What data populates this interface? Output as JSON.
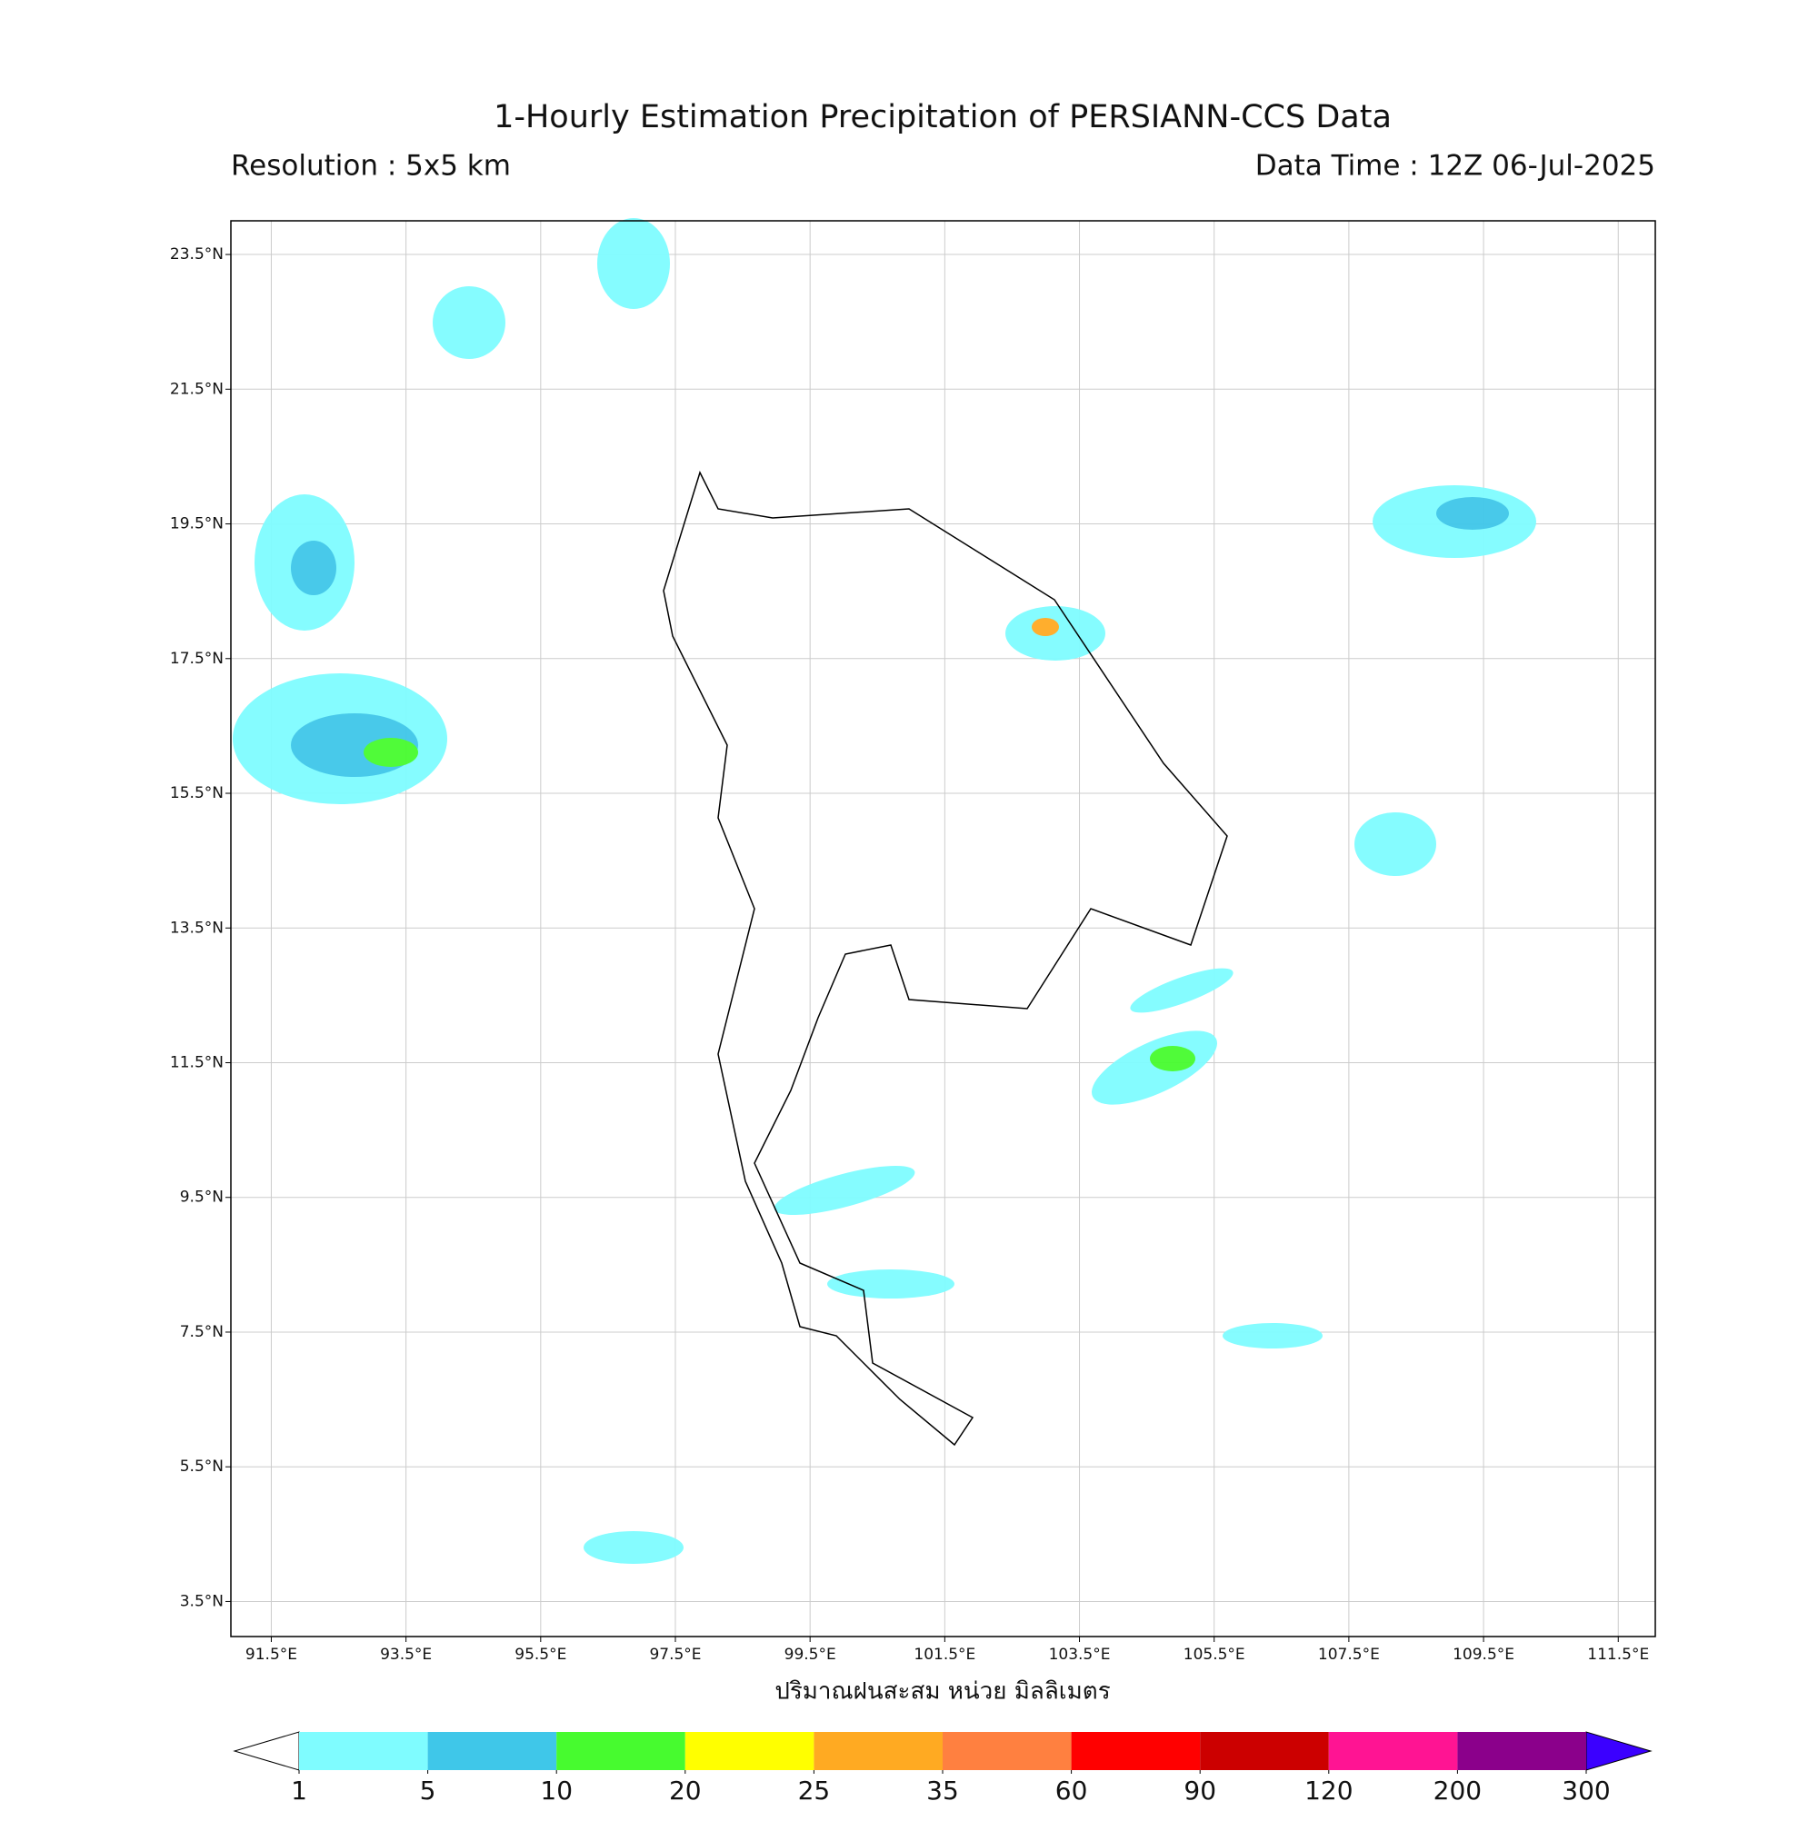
{
  "header": {
    "title": "1-Hourly Estimation Precipitation of PERSIANN-CCS Data",
    "resolution": "Resolution : 5x5 km",
    "data_time": "Data Time : 12Z 06-Jul-2025"
  },
  "map": {
    "lon_range": [
      90.9,
      112.05
    ],
    "lat_range": [
      2.98,
      24.0
    ],
    "lon_ticks": [
      {
        "value": 91.5,
        "label": "91.5°E"
      },
      {
        "value": 93.5,
        "label": "93.5°E"
      },
      {
        "value": 95.5,
        "label": "95.5°E"
      },
      {
        "value": 97.5,
        "label": "97.5°E"
      },
      {
        "value": 99.5,
        "label": "99.5°E"
      },
      {
        "value": 101.5,
        "label": "101.5°E"
      },
      {
        "value": 103.5,
        "label": "103.5°E"
      },
      {
        "value": 105.5,
        "label": "105.5°E"
      },
      {
        "value": 107.5,
        "label": "107.5°E"
      },
      {
        "value": 109.5,
        "label": "109.5°E"
      },
      {
        "value": 111.5,
        "label": "111.5°E"
      }
    ],
    "lat_ticks": [
      {
        "value": 23.5,
        "label": "23.5°N"
      },
      {
        "value": 21.5,
        "label": "21.5°N"
      },
      {
        "value": 19.5,
        "label": "19.5°N"
      },
      {
        "value": 17.5,
        "label": "17.5°N"
      },
      {
        "value": 15.5,
        "label": "15.5°N"
      },
      {
        "value": 13.5,
        "label": "13.5°N"
      },
      {
        "value": 11.5,
        "label": "11.5°N"
      },
      {
        "value": 9.5,
        "label": "9.5°N"
      },
      {
        "value": 7.5,
        "label": "7.5°N"
      },
      {
        "value": 5.5,
        "label": "5.5°N"
      },
      {
        "value": 3.5,
        "label": "3.5°N"
      }
    ],
    "xlabel": "ปริมาณฝนสะสม หน่วย มิลลิเมตร"
  },
  "colorbar": {
    "levels": [
      1,
      5,
      10,
      20,
      25,
      35,
      60,
      90,
      120,
      200,
      300
    ],
    "colors": [
      "#7ffcff",
      "#3fc7e9",
      "#47fb2f",
      "#ffff00",
      "#ffaa22",
      "#ff8040",
      "#ff0000",
      "#cc0000",
      "#ff1493",
      "#8b008b"
    ],
    "under_color": "#ffffff",
    "over_color": "#3b00ff"
  }
}
